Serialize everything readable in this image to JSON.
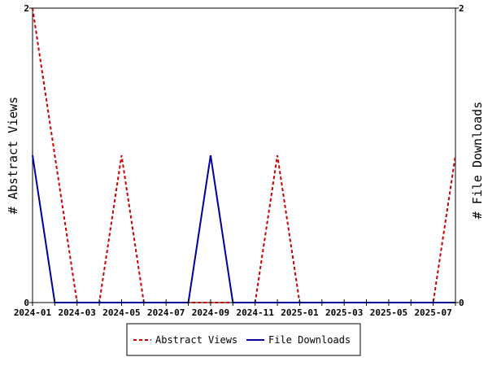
{
  "chart_data": {
    "type": "line",
    "x": [
      "2024-01",
      "2024-02",
      "2024-03",
      "2024-04",
      "2024-05",
      "2024-06",
      "2024-07",
      "2024-08",
      "2024-09",
      "2024-10",
      "2024-11",
      "2024-12",
      "2025-01",
      "2025-02",
      "2025-03",
      "2025-04",
      "2025-05",
      "2025-06",
      "2025-07",
      "2025-08"
    ],
    "x_tick_labels": [
      "2024-01",
      "2024-03",
      "2024-05",
      "2024-07",
      "2024-09",
      "2024-11",
      "2025-01",
      "2025-03",
      "2025-05",
      "2025-07"
    ],
    "series": [
      {
        "name": "Abstract Views",
        "axis": "left",
        "color": "#cc0000",
        "style": "dashed",
        "values": [
          2,
          1,
          0,
          0,
          1,
          0,
          0,
          0,
          0,
          0,
          0,
          1,
          0,
          0,
          0,
          0,
          0,
          0,
          0,
          1
        ]
      },
      {
        "name": "File Downloads",
        "axis": "right",
        "color": "#000099",
        "style": "solid",
        "values": [
          1,
          0,
          0,
          0,
          0,
          0,
          0,
          0,
          1,
          0,
          0,
          0,
          0,
          0,
          0,
          0,
          0,
          0,
          0,
          0
        ]
      }
    ],
    "ylabel_left": "# Abstract Views",
    "ylabel_right": "# File Downloads",
    "ylim_left": [
      0,
      2
    ],
    "ylim_right": [
      0,
      2
    ],
    "y_ticks_left": [
      "0",
      "2"
    ],
    "y_ticks_right": [
      "0",
      "2"
    ],
    "grid": false,
    "legend_position": "bottom-center"
  }
}
